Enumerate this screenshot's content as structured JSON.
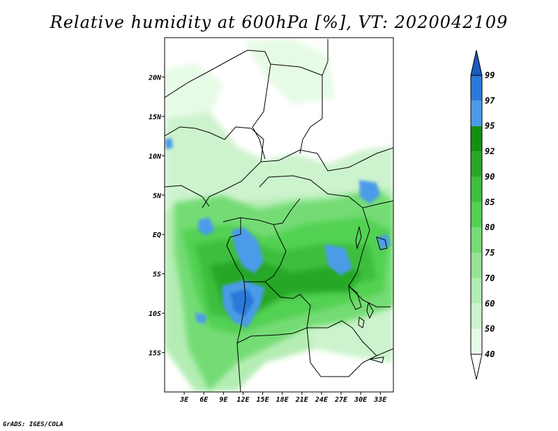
{
  "title": "Relative humidity at 600hPa [%], VT: 2020042109",
  "credit": "GrADS: IGES/COLA",
  "map": {
    "lon_range": [
      0,
      35
    ],
    "lat_range": [
      -20,
      25
    ],
    "lon_ticks": [
      "3E",
      "6E",
      "9E",
      "12E",
      "15E",
      "18E",
      "21E",
      "24E",
      "27E",
      "30E",
      "33E"
    ],
    "lat_ticks": [
      "20N",
      "15N",
      "10N",
      "5N",
      "EQ",
      "5S",
      "10S",
      "15S"
    ]
  },
  "colorbar": {
    "levels": [
      "40",
      "50",
      "60",
      "70",
      "75",
      "80",
      "85",
      "90",
      "92",
      "95",
      "97",
      "99"
    ],
    "colors": [
      "#ffffff",
      "#e6fbe6",
      "#cdf3cd",
      "#b3edb3",
      "#95e495",
      "#75dc75",
      "#52d152",
      "#3cbf3c",
      "#28a828",
      "#119111",
      "#4b9be8",
      "#2b79d8",
      "#1a5bbf"
    ]
  }
}
